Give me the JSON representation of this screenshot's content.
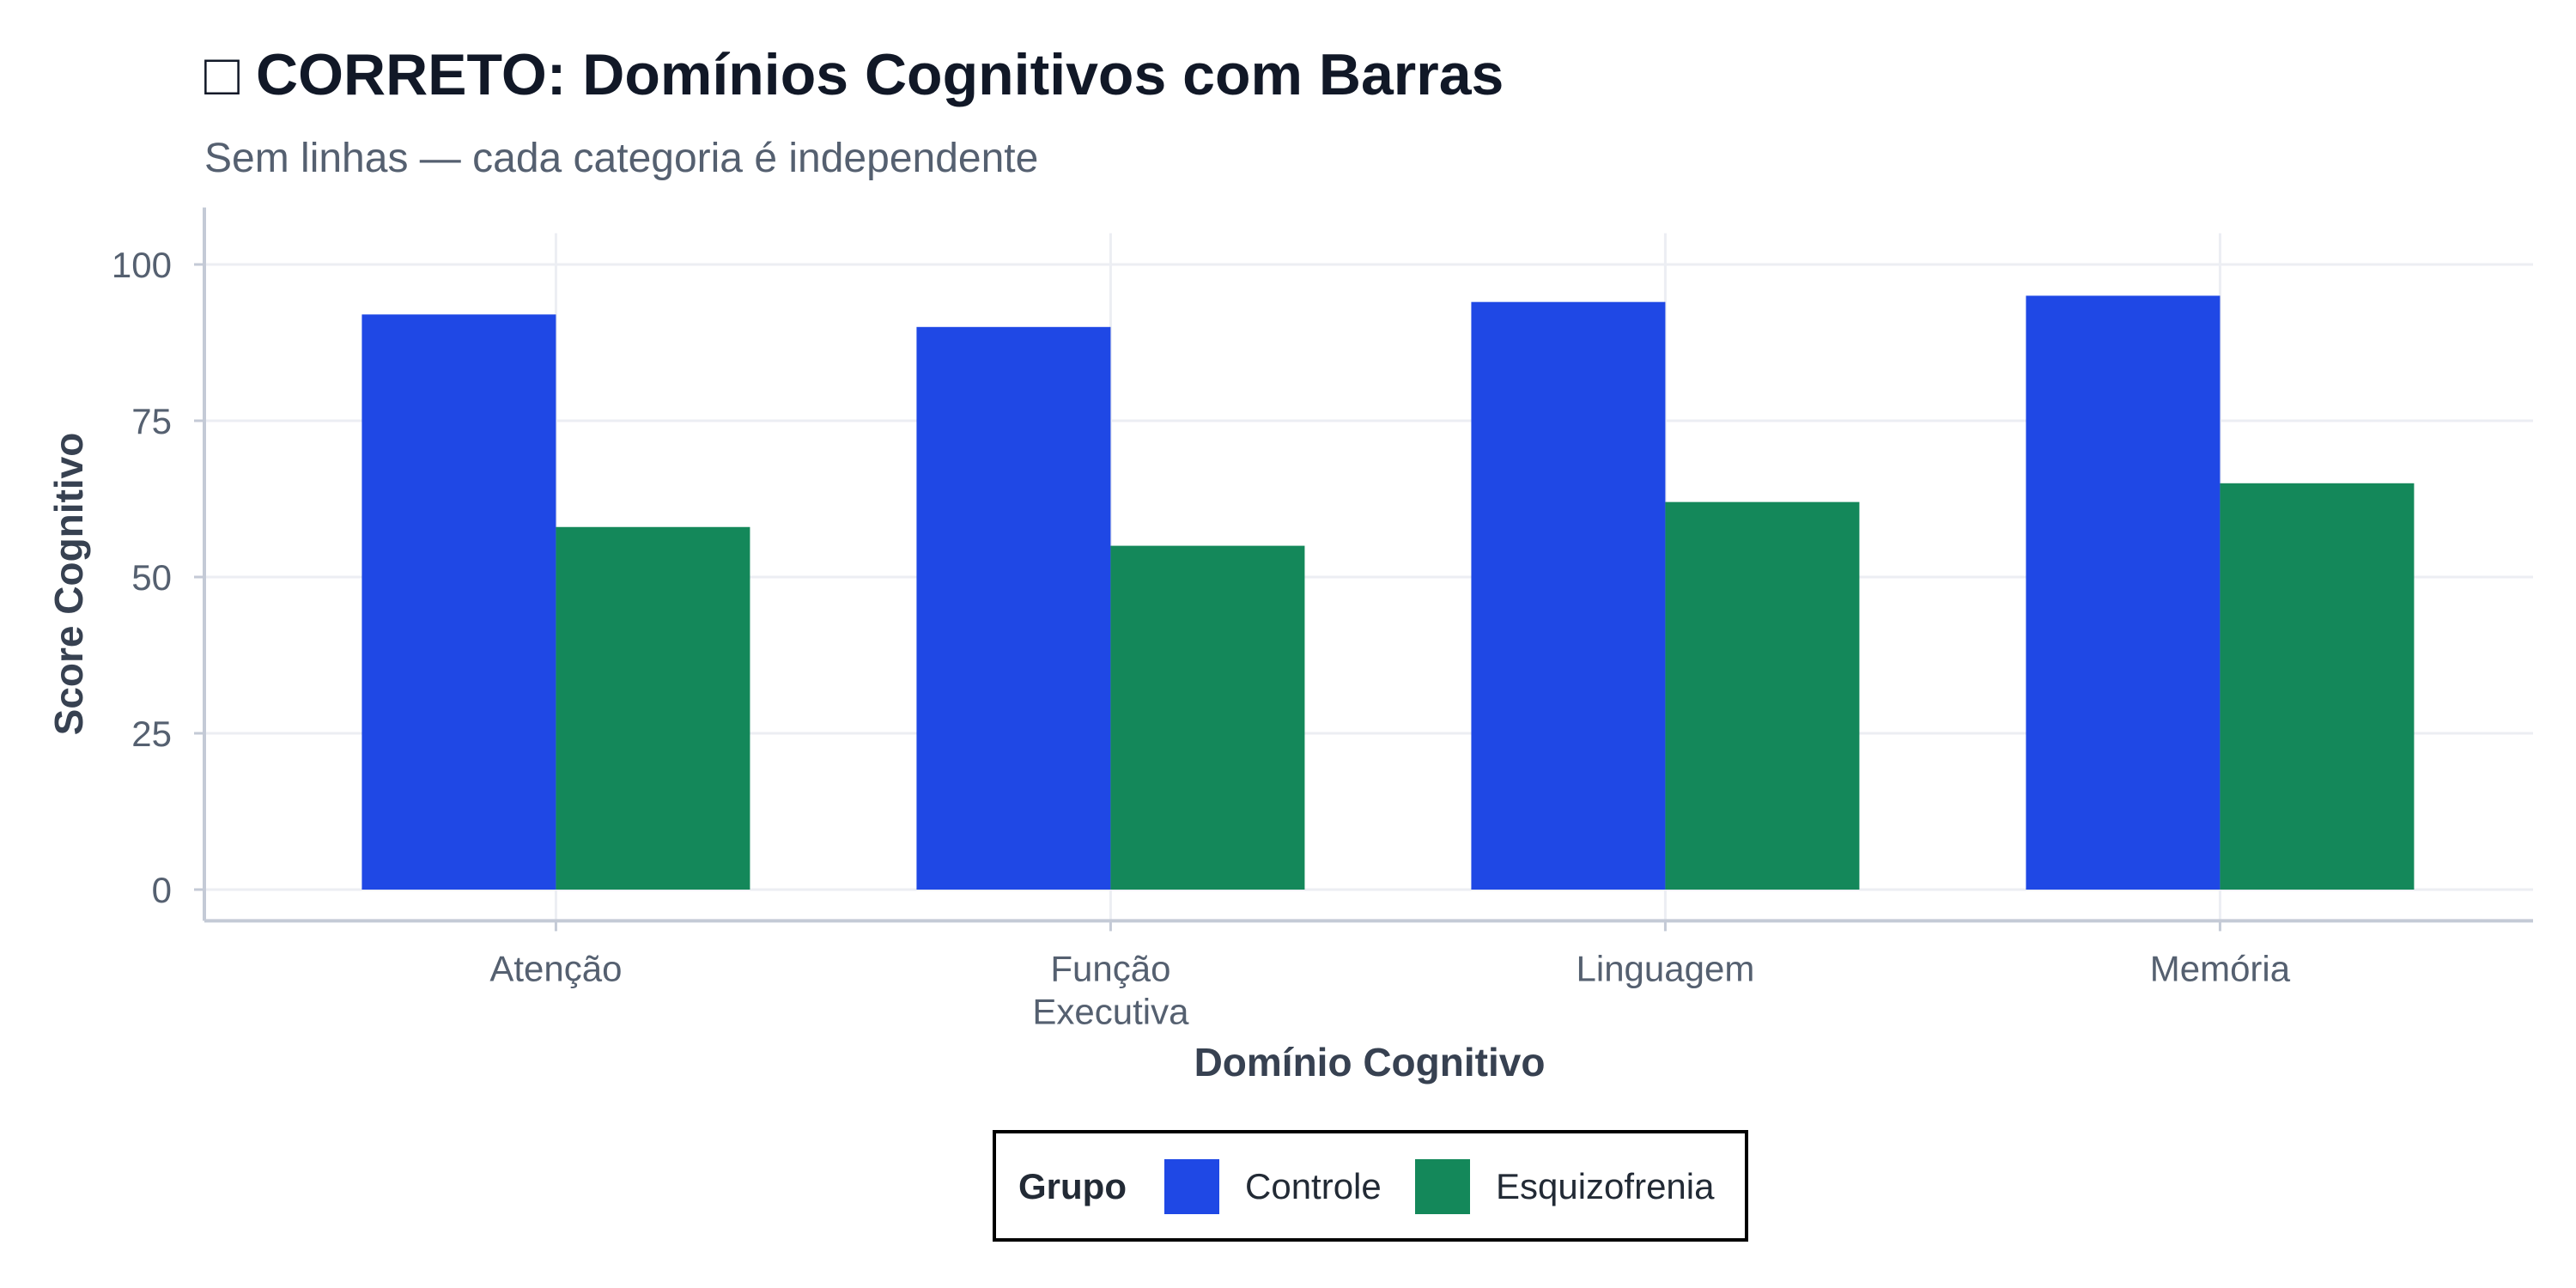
{
  "chart_data": {
    "type": "bar",
    "title": "□ CORRETO: Domínios Cognitivos com Barras",
    "subtitle": "Sem linhas — cada categoria é independente",
    "xlabel": "Domínio Cognitivo",
    "ylabel": "Score Cognitivo",
    "categories": [
      [
        "Atenção"
      ],
      [
        "Função",
        "Executiva"
      ],
      [
        "Linguagem"
      ],
      [
        "Memória"
      ]
    ],
    "series": [
      {
        "name": "Controle",
        "color": "#1f48e5",
        "values": [
          92,
          90,
          94,
          95
        ]
      },
      {
        "name": "Esquizofrenia",
        "color": "#14885a",
        "values": [
          58,
          55,
          62,
          65
        ]
      }
    ],
    "ylim": [
      0,
      105
    ],
    "yticks": [
      0,
      25,
      50,
      75,
      100
    ],
    "grid": true,
    "legend": {
      "title": "Grupo",
      "placement": "bottom-center"
    }
  }
}
